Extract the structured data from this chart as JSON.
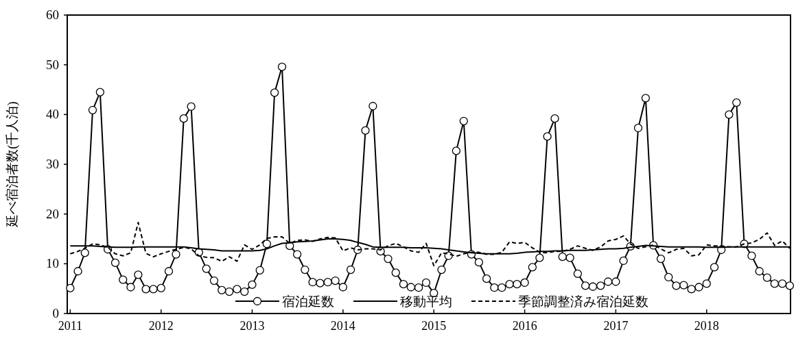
{
  "chart_data": {
    "type": "line",
    "ylabel": "延べ宿泊者数(千人泊)",
    "x": [
      "2011-01",
      "2011-02",
      "2011-03",
      "2011-04",
      "2011-05",
      "2011-06",
      "2011-07",
      "2011-08",
      "2011-09",
      "2011-10",
      "2011-11",
      "2011-12",
      "2012-01",
      "2012-02",
      "2012-03",
      "2012-04",
      "2012-05",
      "2012-06",
      "2012-07",
      "2012-08",
      "2012-09",
      "2012-10",
      "2012-11",
      "2012-12",
      "2013-01",
      "2013-02",
      "2013-03",
      "2013-04",
      "2013-05",
      "2013-06",
      "2013-07",
      "2013-08",
      "2013-09",
      "2013-10",
      "2013-11",
      "2013-12",
      "2014-01",
      "2014-02",
      "2014-03",
      "2014-04",
      "2014-05",
      "2014-06",
      "2014-07",
      "2014-08",
      "2014-09",
      "2014-10",
      "2014-11",
      "2014-12",
      "2015-01",
      "2015-02",
      "2015-03",
      "2015-04",
      "2015-05",
      "2015-06",
      "2015-07",
      "2015-08",
      "2015-09",
      "2015-10",
      "2015-11",
      "2015-12",
      "2016-01",
      "2016-02",
      "2016-03",
      "2016-04",
      "2016-05",
      "2016-06",
      "2016-07",
      "2016-08",
      "2016-09",
      "2016-10",
      "2016-11",
      "2016-12",
      "2017-01",
      "2017-02",
      "2017-03",
      "2017-04",
      "2017-05",
      "2017-06",
      "2017-07",
      "2017-08",
      "2017-09",
      "2017-10",
      "2017-11",
      "2017-12",
      "2018-01",
      "2018-02",
      "2018-03",
      "2018-04",
      "2018-05",
      "2018-06",
      "2018-07",
      "2018-08",
      "2018-09",
      "2018-10",
      "2018-11",
      "2018-12"
    ],
    "series": [
      {
        "name": "宿泊延数",
        "color": "#000000",
        "marker": "circle",
        "line_style": "solid",
        "values": [
          5.1,
          8.5,
          12.2,
          40.9,
          44.5,
          12.9,
          10.2,
          6.8,
          5.3,
          7.8,
          4.9,
          4.9,
          5.1,
          8.5,
          11.9,
          39.2,
          41.6,
          12.3,
          9.0,
          6.6,
          4.7,
          4.4,
          4.9,
          4.4,
          5.8,
          8.7,
          14.0,
          44.4,
          49.6,
          13.6,
          11.9,
          8.8,
          6.3,
          6.1,
          6.3,
          6.6,
          5.3,
          8.8,
          12.8,
          36.8,
          41.7,
          12.5,
          11.0,
          8.2,
          5.9,
          5.3,
          5.2,
          6.2,
          4.1,
          8.8,
          11.6,
          32.7,
          38.7,
          11.9,
          10.3,
          7.0,
          5.2,
          5.2,
          5.9,
          5.9,
          6.2,
          9.3,
          11.2,
          35.6,
          39.2,
          11.4,
          11.2,
          8.0,
          5.6,
          5.4,
          5.6,
          6.4,
          6.4,
          10.6,
          13.5,
          37.3,
          43.3,
          13.7,
          11.0,
          7.3,
          5.6,
          5.7,
          4.9,
          5.3,
          6.0,
          9.3,
          12.8,
          40.0,
          42.4,
          14.0,
          11.6,
          8.5,
          7.2,
          6.0,
          6.0,
          5.6
        ]
      },
      {
        "name": "移動平均",
        "color": "#000000",
        "marker": "none",
        "line_style": "solid",
        "values": [
          13.6,
          13.6,
          13.6,
          13.6,
          13.5,
          13.4,
          13.3,
          13.3,
          13.3,
          13.4,
          13.4,
          13.4,
          13.4,
          13.4,
          13.4,
          13.4,
          13.2,
          13.0,
          12.9,
          12.8,
          12.6,
          12.6,
          12.6,
          12.6,
          12.6,
          12.7,
          13.0,
          13.6,
          14.1,
          14.2,
          14.4,
          14.5,
          14.6,
          14.8,
          15.0,
          15.0,
          14.9,
          14.7,
          14.3,
          13.9,
          13.4,
          13.3,
          13.3,
          13.3,
          13.3,
          13.2,
          13.2,
          13.2,
          13.1,
          13.0,
          12.8,
          12.6,
          12.4,
          12.2,
          12.1,
          12.0,
          12.0,
          12.0,
          12.0,
          12.1,
          12.3,
          12.4,
          12.5,
          12.5,
          12.6,
          12.6,
          12.7,
          12.7,
          12.7,
          12.8,
          12.9,
          13.0,
          13.0,
          13.1,
          13.3,
          13.5,
          13.7,
          13.6,
          13.5,
          13.4,
          13.4,
          13.4,
          13.4,
          13.4,
          13.3,
          13.3,
          13.3,
          13.4,
          13.4,
          13.4,
          13.4,
          13.4,
          13.4,
          13.4,
          13.4,
          13.4
        ]
      },
      {
        "name": "季節調整済み宿泊延数",
        "color": "#000000",
        "marker": "none",
        "line_style": "dashed",
        "values": [
          12.0,
          12.5,
          13.1,
          14.0,
          13.8,
          13.3,
          12.0,
          11.6,
          12.2,
          18.3,
          12.1,
          11.4,
          12.0,
          12.5,
          12.9,
          13.3,
          13.0,
          11.6,
          11.3,
          11.2,
          10.5,
          11.4,
          10.5,
          13.8,
          12.9,
          13.8,
          15.1,
          15.4,
          15.4,
          14.1,
          14.7,
          14.8,
          14.5,
          15.0,
          15.3,
          15.2,
          12.6,
          13.2,
          12.8,
          13.0,
          13.0,
          12.8,
          13.6,
          14.1,
          13.4,
          12.6,
          12.3,
          14.1,
          9.6,
          12.2,
          12.0,
          11.5,
          12.0,
          12.3,
          12.3,
          11.9,
          11.9,
          12.3,
          14.4,
          14.1,
          14.3,
          13.2,
          12.3,
          12.2,
          12.5,
          12.5,
          12.9,
          13.6,
          13.1,
          12.7,
          13.4,
          14.6,
          14.9,
          15.6,
          14.0,
          13.1,
          13.4,
          13.8,
          13.0,
          12.2,
          12.9,
          13.1,
          11.6,
          11.8,
          13.8,
          13.6,
          13.6,
          13.4,
          13.4,
          14.0,
          14.2,
          14.9,
          16.2,
          13.7,
          14.6,
          13.1
        ]
      }
    ],
    "xlim": [
      "2010-12-20",
      "2018-12-04"
    ],
    "xticks": [
      {
        "value": "2011-01",
        "label": "2011"
      },
      {
        "value": "2012-01",
        "label": "2012"
      },
      {
        "value": "2013-01",
        "label": "2013"
      },
      {
        "value": "2014-01",
        "label": "2014"
      },
      {
        "value": "2015-01",
        "label": "2015"
      },
      {
        "value": "2016-01",
        "label": "2016"
      },
      {
        "value": "2017-01",
        "label": "2017"
      },
      {
        "value": "2018-01",
        "label": "2018"
      }
    ],
    "ylim": [
      0,
      60
    ],
    "yticks": [
      0,
      10,
      20,
      30,
      40,
      50,
      60
    ],
    "legend": "bottom",
    "grid": false
  }
}
